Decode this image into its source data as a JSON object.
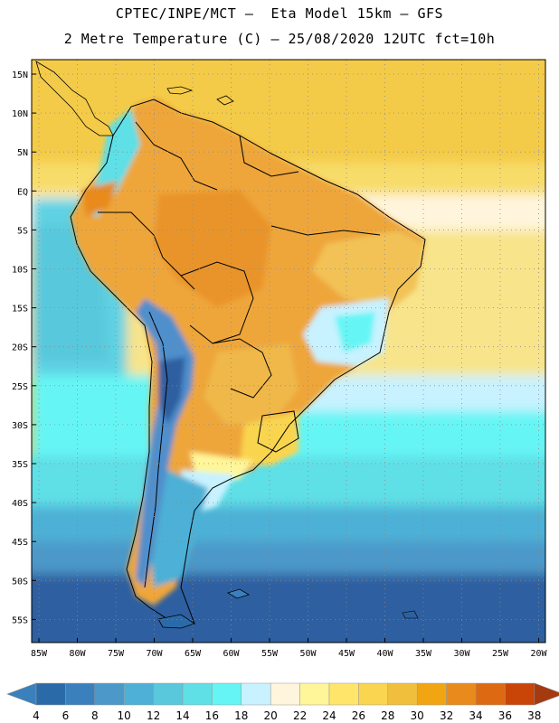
{
  "title_line1": "CPTEC/INPE/MCT –  Eta Model 15km – GFS",
  "title_line2": "2 Metre Temperature (C) – 25/08/2020 12UTC fct=10h",
  "lat_labels": [
    "15N",
    "10N",
    "5N",
    "EQ",
    "5S",
    "10S",
    "15S",
    "20S",
    "25S",
    "30S",
    "35S",
    "40S",
    "45S",
    "50S",
    "55S"
  ],
  "lon_labels": [
    "85W",
    "80W",
    "75W",
    "70W",
    "65W",
    "60W",
    "55W",
    "50W",
    "45W",
    "40W",
    "35W",
    "30W",
    "25W",
    "20W"
  ],
  "colorbar": {
    "labels": [
      "4",
      "6",
      "8",
      "10",
      "12",
      "14",
      "16",
      "18",
      "20",
      "22",
      "24",
      "26",
      "28",
      "30",
      "32",
      "34",
      "36",
      "38"
    ],
    "colors": [
      "#2b6aa8",
      "#3a80bd",
      "#4b98c9",
      "#4eb0d6",
      "#59c8dc",
      "#5fdfe6",
      "#66f5f5",
      "#c8f2ff",
      "#fff5dc",
      "#fff699",
      "#ffe66b",
      "#f9d550",
      "#f0c03c",
      "#f2a512",
      "#e88b1c",
      "#dd6a13",
      "#c84407"
    ],
    "below_color": "#3a80bd",
    "above_color": "#a53a10"
  },
  "palette": {
    "ocean_cold": "#2d5fa0",
    "ocean_cool": "#3b79b8",
    "ocean_mid": "#4aa6d2",
    "ocean_mild": "#5fd2e3",
    "ocean_warm": "#f7dc6a",
    "ocean_hot": "#f4cb48",
    "land_hot": "#eea63a",
    "land_warm": "#f2c257",
    "andes_cold": "#4f8fcc",
    "border_color": "#000000",
    "grid_color": "#8a8a8a"
  }
}
